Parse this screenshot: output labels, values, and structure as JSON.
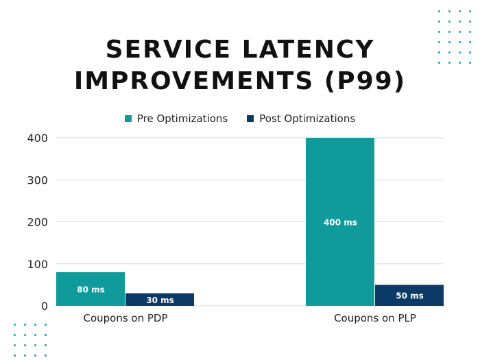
{
  "colors": {
    "pre": "#0f9b9b",
    "post": "#0c3a66",
    "dots": "#1aa3a3",
    "grid": "#d9d9d9"
  },
  "title_lines": [
    "SERVICE LATENCY",
    "IMPROVEMENTS (P99)"
  ],
  "chart_data": {
    "type": "bar",
    "title": "SERVICE LATENCY IMPROVEMENTS (P99)",
    "categories": [
      "Coupons on PDP",
      "Coupons on PLP"
    ],
    "series": [
      {
        "name": "Pre Optimizations",
        "values": [
          80,
          400
        ],
        "labels": [
          "80 ms",
          "400 ms"
        ]
      },
      {
        "name": "Post Optimizations",
        "values": [
          30,
          50
        ],
        "labels": [
          "30 ms",
          "50 ms"
        ]
      }
    ],
    "ylim": [
      0,
      400
    ],
    "yticks": [
      0,
      100,
      200,
      300,
      400
    ],
    "grid": true,
    "legend": "top-center",
    "xlabel": "",
    "ylabel": ""
  }
}
